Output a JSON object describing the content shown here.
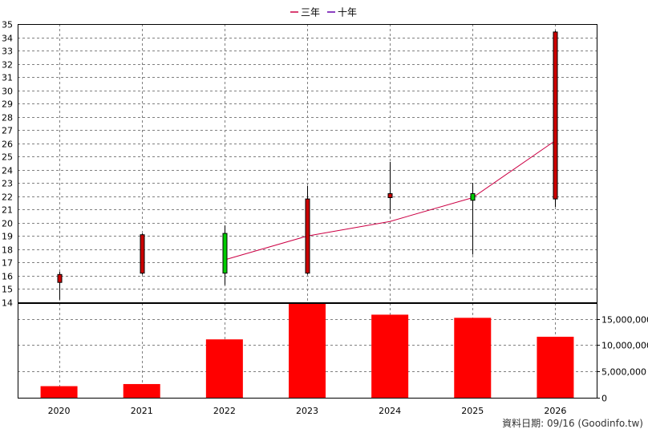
{
  "chart_data": {
    "type": "candlestick+line+bar",
    "categories": [
      "2020",
      "2021",
      "2022",
      "2023",
      "2024",
      "2025",
      "2026"
    ],
    "legend": {
      "placement": "top-center",
      "entries": [
        {
          "name": "三年",
          "color": "#cc0044"
        },
        {
          "name": "十年",
          "color": "#6600aa"
        }
      ]
    },
    "price_axis": {
      "ylim": [
        14,
        35
      ],
      "ticks": [
        "14",
        "15",
        "16",
        "17",
        "18",
        "19",
        "20",
        "21",
        "22",
        "23",
        "24",
        "25",
        "26",
        "27",
        "28",
        "29",
        "30",
        "31",
        "32",
        "33",
        "34",
        "35"
      ],
      "grid": true
    },
    "volume_axis": {
      "ylim": [
        0,
        18000000
      ],
      "ticks": [
        {
          "value": 0,
          "label": "0"
        },
        {
          "value": 5000000,
          "label": "5,000,000"
        },
        {
          "value": 10000000,
          "label": "10,000,000"
        },
        {
          "value": 15000000,
          "label": "15,000,000"
        }
      ],
      "grid": true
    },
    "candles": [
      {
        "year": "2020",
        "open": 15.5,
        "close": 16.1,
        "high": 16.3,
        "low": 14.2,
        "color": "#cc0000"
      },
      {
        "year": "2021",
        "open": 16.2,
        "close": 19.1,
        "high": 19.2,
        "low": 16.1,
        "color": "#cc0000"
      },
      {
        "year": "2022",
        "open": 19.2,
        "close": 16.2,
        "high": 19.8,
        "low": 15.3,
        "color": "#00cc00"
      },
      {
        "year": "2023",
        "open": 16.2,
        "close": 21.8,
        "high": 22.8,
        "low": 16.1,
        "color": "#cc0000"
      },
      {
        "year": "2024",
        "open": 21.9,
        "close": 22.2,
        "high": 24.6,
        "low": 20.7,
        "color": "#cc0000"
      },
      {
        "year": "2025",
        "open": 22.2,
        "close": 21.7,
        "high": 23.0,
        "low": 17.6,
        "color": "#00cc00"
      },
      {
        "year": "2026",
        "open": 21.8,
        "close": 34.4,
        "high": 34.5,
        "low": 21.2,
        "color": "#cc0000"
      }
    ],
    "series": [
      {
        "name": "三年",
        "color": "#cc0044",
        "x": [
          "2022",
          "2023",
          "2024",
          "2025",
          "2026"
        ],
        "values": [
          17.2,
          19.0,
          20.1,
          21.9,
          26.2
        ]
      }
    ],
    "volume": {
      "color": "#ff0000",
      "values": [
        2200000,
        2600000,
        11100000,
        18100000,
        15800000,
        15200000,
        11600000
      ]
    }
  },
  "footer": {
    "text": "資料日期: 09/16  (Goodinfo.tw)"
  }
}
